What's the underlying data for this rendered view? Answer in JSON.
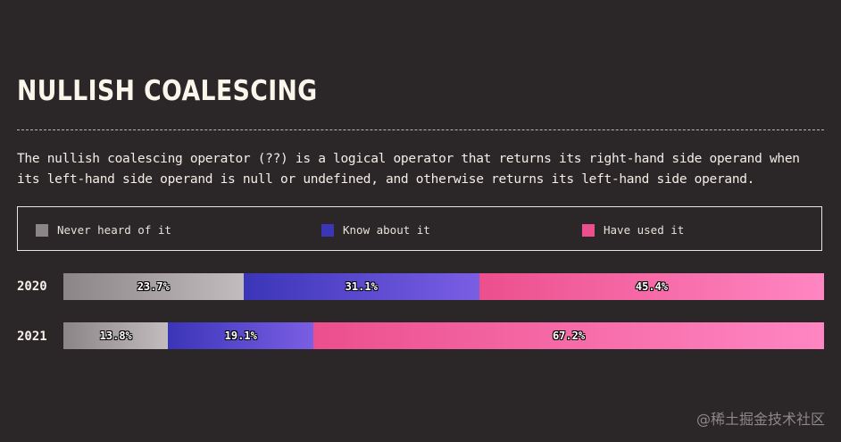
{
  "title": "NULLISH COALESCING",
  "description": "The nullish coalescing operator (??) is a logical operator that returns its right-hand side operand when its left-hand side operand is null or undefined, and otherwise returns its left-hand side operand.",
  "watermark": "@稀土掘金技术社区",
  "colors": {
    "never": [
      "#8c8587",
      "#c2bcbe"
    ],
    "know": [
      "#3b35b8",
      "#7a5ee4"
    ],
    "used": [
      "#ec4f8d",
      "#ff86c2"
    ]
  },
  "chart_data": {
    "type": "bar",
    "orientation": "horizontal",
    "stacked": true,
    "normalized": true,
    "categories": [
      "2020",
      "2021"
    ],
    "series": [
      {
        "name": "Never heard of it",
        "values": [
          23.7,
          13.8
        ],
        "labels": [
          "23.7%",
          "13.8%"
        ]
      },
      {
        "name": "Know about it",
        "values": [
          31.1,
          19.1
        ],
        "labels": [
          "31.1%",
          "19.1%"
        ]
      },
      {
        "name": "Have used it",
        "values": [
          45.4,
          67.2
        ],
        "labels": [
          "45.4%",
          "67.2%"
        ]
      }
    ],
    "title": "NULLISH COALESCING",
    "xlim": [
      0,
      100
    ],
    "legend": "top",
    "grid": false
  }
}
